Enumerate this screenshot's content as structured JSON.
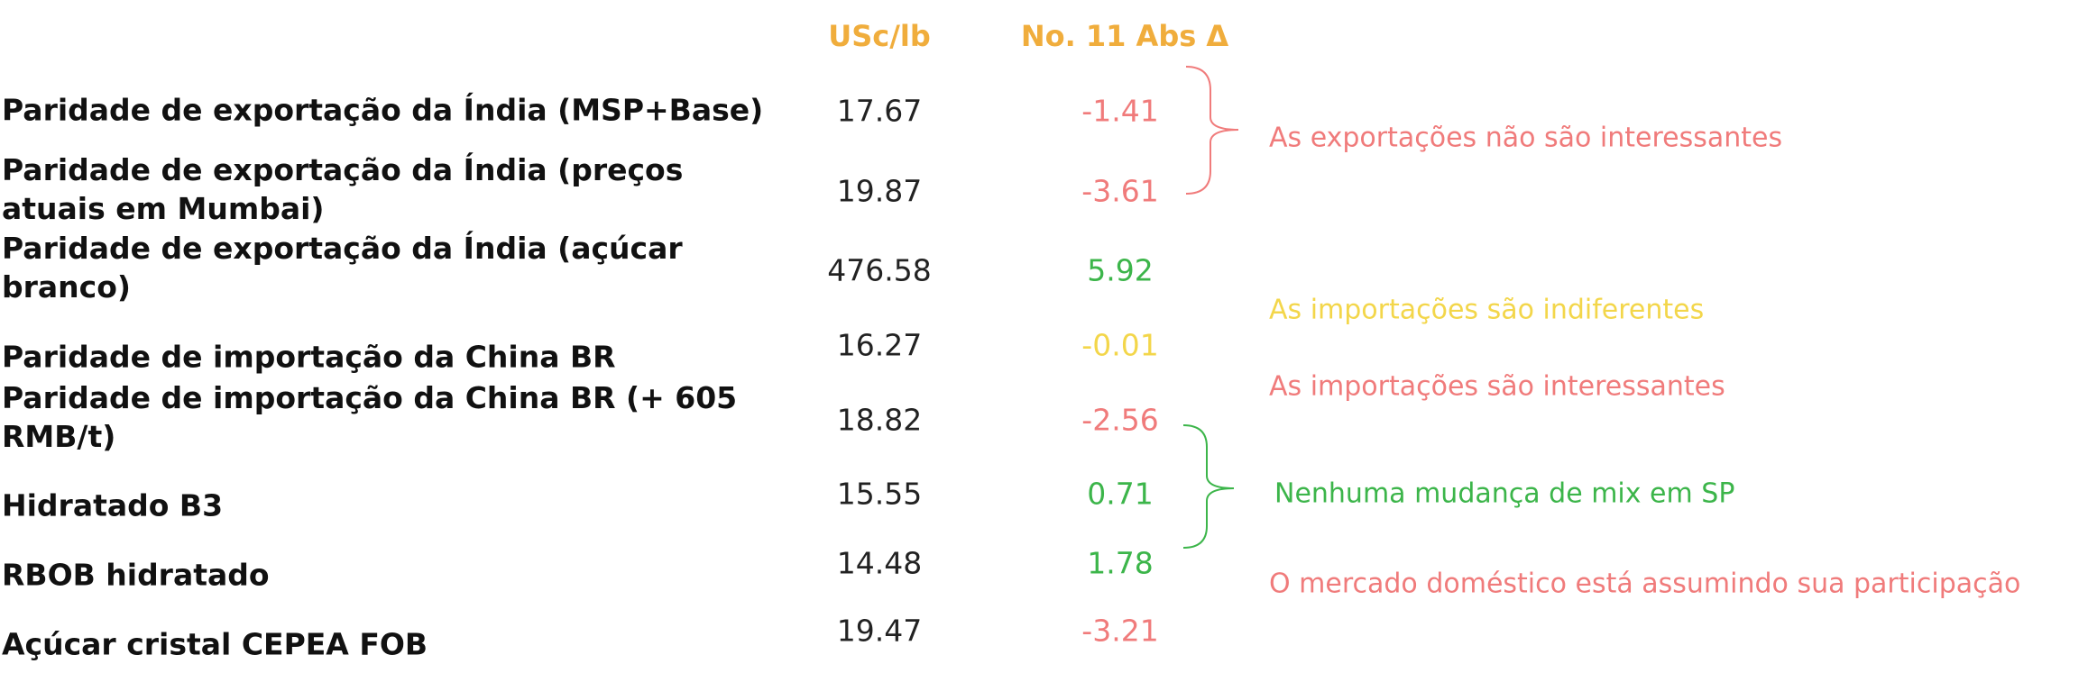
{
  "header": {
    "price": "USc/lb",
    "change": "No. 11 Abs Δ"
  },
  "rows": [
    {
      "label": "Paridade de exportação da Índia (MSP+Base)",
      "price": "17.67",
      "change": "-1.41",
      "color": "#f07b7b"
    },
    {
      "label": "Paridade de exportação da Índia (preços atuais em Mumbai)",
      "price": "19.87",
      "change": "-3.61",
      "color": "#f07b7b"
    },
    {
      "label": "Paridade de exportação da Índia (açúcar branco)",
      "price": "476.58",
      "change": "5.92",
      "color": "#3cb54a"
    },
    {
      "label": "Paridade de importação da China BR",
      "price": "16.27",
      "change": "-0.01",
      "color": "#f3d64a"
    },
    {
      "label": "Paridade de importação da China BR (+ 605 RMB/t)",
      "price": "18.82",
      "change": "-2.56",
      "color": "#f07b7b"
    },
    {
      "label": "Hidratado B3",
      "price": "15.55",
      "change": "0.71",
      "color": "#3cb54a"
    },
    {
      "label": "RBOB hidratado",
      "price": "14.48",
      "change": "1.78",
      "color": "#3cb54a"
    },
    {
      "label": "Açúcar cristal CEPEA FOB",
      "price": "19.47",
      "change": "-3.21",
      "color": "#f07b7b"
    }
  ],
  "notes": [
    {
      "text": "As exportações não são interessantes",
      "color": "#f07b7b"
    },
    {
      "text": "As importações são indiferentes",
      "color": "#f3d64a"
    },
    {
      "text": "As importações são interessantes",
      "color": "#f07b7b"
    },
    {
      "text": "Nenhuma mudança de mix em SP",
      "color": "#3cb54a"
    },
    {
      "text": "O mercado doméstico está assumindo sua participação",
      "color": "#f07b7b"
    }
  ]
}
